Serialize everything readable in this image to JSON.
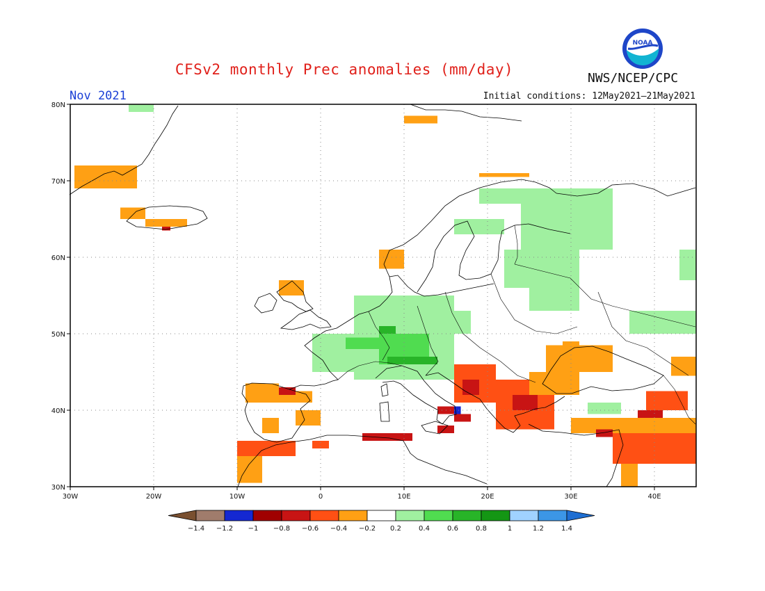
{
  "title": "CFSv2 monthly Prec anomalies (mm/day)",
  "valid_month": "Nov 2021",
  "initial_conditions": "Initial conditions: 12May2021–21May2021",
  "organization": "NWS/NCEP/CPC",
  "logo_text": "NOAA",
  "map": {
    "lon_range": [
      -30,
      45
    ],
    "lat_range": [
      30,
      80
    ],
    "lat_labels": [
      "30N",
      "40N",
      "50N",
      "60N",
      "70N",
      "80N"
    ],
    "lon_labels": [
      "30W",
      "20W",
      "10W",
      "0",
      "10E",
      "20E",
      "30E",
      "40E"
    ]
  },
  "colorbar": {
    "colors": [
      "#7a5030",
      "#a07c6c",
      "#1428d2",
      "#a00000",
      "#c81414",
      "#ff5014",
      "#ffa014",
      "#ffffff",
      "#a0f0a0",
      "#50dc50",
      "#28b428",
      "#149614",
      "#a0d2ff",
      "#3c96e6",
      "#1e6ed2"
    ],
    "labels": [
      "-1.4",
      "-1.2",
      "-1",
      "-0.8",
      "-0.6",
      "-0.4",
      "-0.2",
      "0.2",
      "0.4",
      "0.6",
      "0.8",
      "1",
      "1.2",
      "1.4"
    ]
  },
  "anomaly_cells": [
    {
      "lon": [
        -23,
        -20
      ],
      "lat": [
        79,
        80.5
      ],
      "value": 0.3
    },
    {
      "lon": [
        -29.5,
        -22
      ],
      "lat": [
        69,
        72
      ],
      "value": -0.3
    },
    {
      "lon": [
        -24,
        -21
      ],
      "lat": [
        65,
        66.5
      ],
      "value": -0.3
    },
    {
      "lon": [
        -21,
        -16
      ],
      "lat": [
        64,
        65
      ],
      "value": -0.3
    },
    {
      "lon": [
        -19,
        -18
      ],
      "lat": [
        63.5,
        64
      ],
      "value": -0.8
    },
    {
      "lon": [
        10,
        14
      ],
      "lat": [
        77.5,
        78.5
      ],
      "value": -0.3
    },
    {
      "lon": [
        19,
        25
      ],
      "lat": [
        70.5,
        71
      ],
      "value": -0.3
    },
    {
      "lon": [
        -5,
        -2
      ],
      "lat": [
        55,
        57
      ],
      "value": -0.3
    },
    {
      "lon": [
        7,
        10
      ],
      "lat": [
        58.5,
        61
      ],
      "value": -0.3
    },
    {
      "lon": [
        16,
        22
      ],
      "lat": [
        63,
        65
      ],
      "value": 0.3
    },
    {
      "lon": [
        24,
        35
      ],
      "lat": [
        61,
        69
      ],
      "value": 0.3
    },
    {
      "lon": [
        19,
        27
      ],
      "lat": [
        67,
        69
      ],
      "value": 0.3
    },
    {
      "lon": [
        22,
        31
      ],
      "lat": [
        56,
        61
      ],
      "value": 0.3
    },
    {
      "lon": [
        25,
        31
      ],
      "lat": [
        53,
        57
      ],
      "value": 0.3
    },
    {
      "lon": [
        43,
        45
      ],
      "lat": [
        57,
        61
      ],
      "value": 0.3
    },
    {
      "lon": [
        37,
        45
      ],
      "lat": [
        50,
        53
      ],
      "value": 0.3
    },
    {
      "lon": [
        -1,
        4
      ],
      "lat": [
        45,
        50
      ],
      "value": 0.3
    },
    {
      "lon": [
        4,
        16
      ],
      "lat": [
        44,
        55
      ],
      "value": 0.3
    },
    {
      "lon": [
        16,
        18
      ],
      "lat": [
        50,
        53
      ],
      "value": 0.3
    },
    {
      "lon": [
        7,
        13
      ],
      "lat": [
        46,
        50
      ],
      "value": 0.5
    },
    {
      "lon": [
        3,
        7
      ],
      "lat": [
        48,
        49.5
      ],
      "value": 0.5
    },
    {
      "lon": [
        7,
        9
      ],
      "lat": [
        50,
        51
      ],
      "value": 0.7
    },
    {
      "lon": [
        8,
        14
      ],
      "lat": [
        46,
        47
      ],
      "value": 0.7
    },
    {
      "lon": [
        32,
        36
      ],
      "lat": [
        39.5,
        41
      ],
      "value": 0.3
    },
    {
      "lon": [
        -9,
        -5
      ],
      "lat": [
        41,
        43.5
      ],
      "value": -0.3
    },
    {
      "lon": [
        -5,
        -1
      ],
      "lat": [
        41,
        42.5
      ],
      "value": -0.3
    },
    {
      "lon": [
        -5,
        -3
      ],
      "lat": [
        42,
        43
      ],
      "value": -0.7
    },
    {
      "lon": [
        -7,
        -5
      ],
      "lat": [
        37,
        39
      ],
      "value": -0.3
    },
    {
      "lon": [
        -3,
        0
      ],
      "lat": [
        38,
        40
      ],
      "value": -0.3
    },
    {
      "lon": [
        -10,
        -3
      ],
      "lat": [
        34,
        36
      ],
      "value": -0.5
    },
    {
      "lon": [
        -10,
        -7
      ],
      "lat": [
        30.5,
        34
      ],
      "value": -0.3
    },
    {
      "lon": [
        -1,
        1
      ],
      "lat": [
        35,
        36
      ],
      "value": -0.5
    },
    {
      "lon": [
        5,
        11
      ],
      "lat": [
        36,
        37
      ],
      "value": -0.7
    },
    {
      "lon": [
        16,
        21
      ],
      "lat": [
        41,
        46
      ],
      "value": -0.5
    },
    {
      "lon": [
        17,
        19
      ],
      "lat": [
        42,
        44
      ],
      "value": -0.7
    },
    {
      "lon": [
        14,
        16
      ],
      "lat": [
        39.5,
        40.5
      ],
      "value": -0.8
    },
    {
      "lon": [
        16,
        16.8
      ],
      "lat": [
        39.5,
        40.5
      ],
      "value": -1.1
    },
    {
      "lon": [
        16,
        18
      ],
      "lat": [
        38.5,
        39.5
      ],
      "value": -0.7
    },
    {
      "lon": [
        14,
        16
      ],
      "lat": [
        37,
        38
      ],
      "value": -0.7
    },
    {
      "lon": [
        21,
        28
      ],
      "lat": [
        37.5,
        44
      ],
      "value": -0.5
    },
    {
      "lon": [
        23,
        26
      ],
      "lat": [
        40,
        42
      ],
      "value": -0.8
    },
    {
      "lon": [
        25,
        31
      ],
      "lat": [
        42,
        45
      ],
      "value": -0.4
    },
    {
      "lon": [
        27,
        35
      ],
      "lat": [
        45,
        48.5
      ],
      "value": -0.3
    },
    {
      "lon": [
        30,
        45
      ],
      "lat": [
        37,
        39
      ],
      "value": -0.3
    },
    {
      "lon": [
        35,
        45
      ],
      "lat": [
        33,
        37
      ],
      "value": -0.5
    },
    {
      "lon": [
        38,
        41
      ],
      "lat": [
        39,
        40
      ],
      "value": -0.8
    },
    {
      "lon": [
        39,
        44
      ],
      "lat": [
        40,
        42.5
      ],
      "value": -0.5
    },
    {
      "lon": [
        42,
        45
      ],
      "lat": [
        44.5,
        47
      ],
      "value": -0.3
    },
    {
      "lon": [
        36,
        38
      ],
      "lat": [
        30,
        33
      ],
      "value": -0.3
    },
    {
      "lon": [
        29,
        31
      ],
      "lat": [
        47,
        49
      ],
      "value": -0.3
    },
    {
      "lon": [
        33,
        35
      ],
      "lat": [
        36.5,
        37.5
      ],
      "value": -0.8
    }
  ]
}
